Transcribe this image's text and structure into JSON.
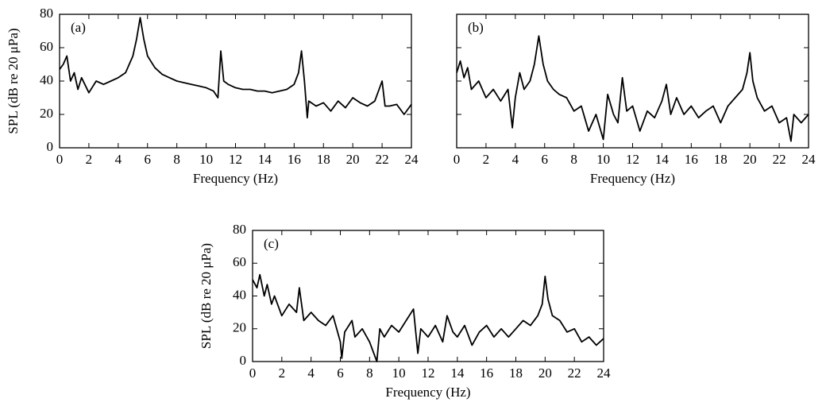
{
  "chart_data": [
    {
      "type": "line",
      "label": "(a)",
      "xlabel": "Frequency (Hz)",
      "ylabel": "SPL (dB re 20 μPa)",
      "ytick_labels": true,
      "xlim": [
        0,
        24
      ],
      "ylim": [
        0,
        80
      ],
      "xticks": [
        0,
        2,
        4,
        6,
        8,
        10,
        12,
        14,
        16,
        18,
        20,
        22,
        24
      ],
      "yticks": [
        0,
        20,
        40,
        60,
        80
      ],
      "series": [
        {
          "color": "#000000",
          "x": [
            0,
            0.25,
            0.5,
            0.75,
            1,
            1.25,
            1.5,
            2,
            2.5,
            3,
            3.5,
            4,
            4.5,
            5,
            5.25,
            5.5,
            5.75,
            6,
            6.5,
            7,
            7.5,
            8,
            8.5,
            9,
            9.5,
            10,
            10.5,
            10.8,
            11,
            11.2,
            11.5,
            12,
            12.5,
            13,
            13.5,
            14,
            14.5,
            15,
            15.5,
            16,
            16.3,
            16.5,
            16.7,
            16.9,
            17,
            17.5,
            18,
            18.5,
            19,
            19.5,
            20,
            20.5,
            21,
            21.5,
            22,
            22.2,
            22.5,
            23,
            23.5,
            24
          ],
          "values": [
            47,
            50,
            55,
            40,
            45,
            35,
            42,
            33,
            40,
            38,
            40,
            42,
            45,
            55,
            65,
            78,
            65,
            55,
            48,
            44,
            42,
            40,
            39,
            38,
            37,
            36,
            34,
            30,
            58,
            40,
            38,
            36,
            35,
            35,
            34,
            34,
            33,
            34,
            35,
            38,
            45,
            58,
            40,
            18,
            28,
            25,
            27,
            22,
            28,
            24,
            30,
            27,
            25,
            28,
            40,
            25,
            25,
            26,
            20,
            26
          ]
        }
      ]
    },
    {
      "type": "line",
      "label": "(b)",
      "xlabel": "Frequency (Hz)",
      "ytick_labels": false,
      "xlim": [
        0,
        24
      ],
      "ylim": [
        0,
        80
      ],
      "xticks": [
        0,
        2,
        4,
        6,
        8,
        10,
        12,
        14,
        16,
        18,
        20,
        22,
        24
      ],
      "yticks": [
        0,
        20,
        40,
        60,
        80
      ],
      "series": [
        {
          "color": "#000000",
          "x": [
            0,
            0.25,
            0.5,
            0.75,
            1,
            1.5,
            2,
            2.5,
            3,
            3.5,
            3.8,
            4,
            4.3,
            4.6,
            5,
            5.3,
            5.6,
            5.9,
            6.2,
            6.6,
            7,
            7.5,
            8,
            8.5,
            9,
            9.5,
            10,
            10.3,
            10.7,
            11,
            11.3,
            11.6,
            12,
            12.5,
            13,
            13.5,
            14,
            14.3,
            14.6,
            15,
            15.5,
            16,
            16.5,
            17,
            17.5,
            18,
            18.5,
            19,
            19.5,
            19.8,
            20,
            20.2,
            20.5,
            21,
            21.5,
            22,
            22.5,
            22.8,
            23,
            23.5,
            24
          ],
          "values": [
            45,
            52,
            42,
            48,
            35,
            40,
            30,
            35,
            28,
            35,
            12,
            30,
            45,
            35,
            40,
            50,
            67,
            50,
            40,
            35,
            32,
            30,
            22,
            25,
            10,
            20,
            5,
            32,
            20,
            15,
            42,
            22,
            25,
            10,
            22,
            18,
            28,
            38,
            20,
            30,
            20,
            25,
            18,
            22,
            25,
            15,
            25,
            30,
            35,
            45,
            57,
            40,
            30,
            22,
            25,
            15,
            18,
            4,
            20,
            15,
            20
          ]
        }
      ]
    },
    {
      "type": "line",
      "label": "(c)",
      "xlabel": "Frequency (Hz)",
      "ylabel": "SPL (dB re 20 μPa)",
      "ytick_labels": true,
      "xlim": [
        0,
        24
      ],
      "ylim": [
        0,
        80
      ],
      "xticks": [
        0,
        2,
        4,
        6,
        8,
        10,
        12,
        14,
        16,
        18,
        20,
        22,
        24
      ],
      "yticks": [
        0,
        20,
        40,
        60,
        80
      ],
      "series": [
        {
          "color": "#000000",
          "x": [
            0,
            0.3,
            0.5,
            0.8,
            1,
            1.3,
            1.5,
            2,
            2.5,
            3,
            3.2,
            3.5,
            4,
            4.5,
            5,
            5.5,
            6,
            6.1,
            6.3,
            6.8,
            7,
            7.5,
            8,
            8.5,
            8.7,
            9,
            9.5,
            10,
            10.5,
            11,
            11.3,
            11.5,
            12,
            12.5,
            13,
            13.3,
            13.7,
            14,
            14.5,
            15,
            15.5,
            16,
            16.5,
            17,
            17.5,
            18,
            18.5,
            19,
            19.5,
            19.8,
            20,
            20.2,
            20.5,
            21,
            21.5,
            22,
            22.5,
            23,
            23.5,
            24
          ],
          "values": [
            50,
            45,
            53,
            40,
            47,
            35,
            40,
            28,
            35,
            30,
            45,
            25,
            30,
            25,
            22,
            28,
            12,
            2,
            18,
            25,
            15,
            20,
            12,
            0,
            20,
            15,
            22,
            18,
            25,
            32,
            5,
            20,
            15,
            22,
            12,
            28,
            18,
            15,
            22,
            10,
            18,
            22,
            15,
            20,
            15,
            20,
            25,
            22,
            28,
            35,
            52,
            38,
            28,
            25,
            18,
            20,
            12,
            15,
            10,
            14
          ]
        }
      ]
    }
  ]
}
